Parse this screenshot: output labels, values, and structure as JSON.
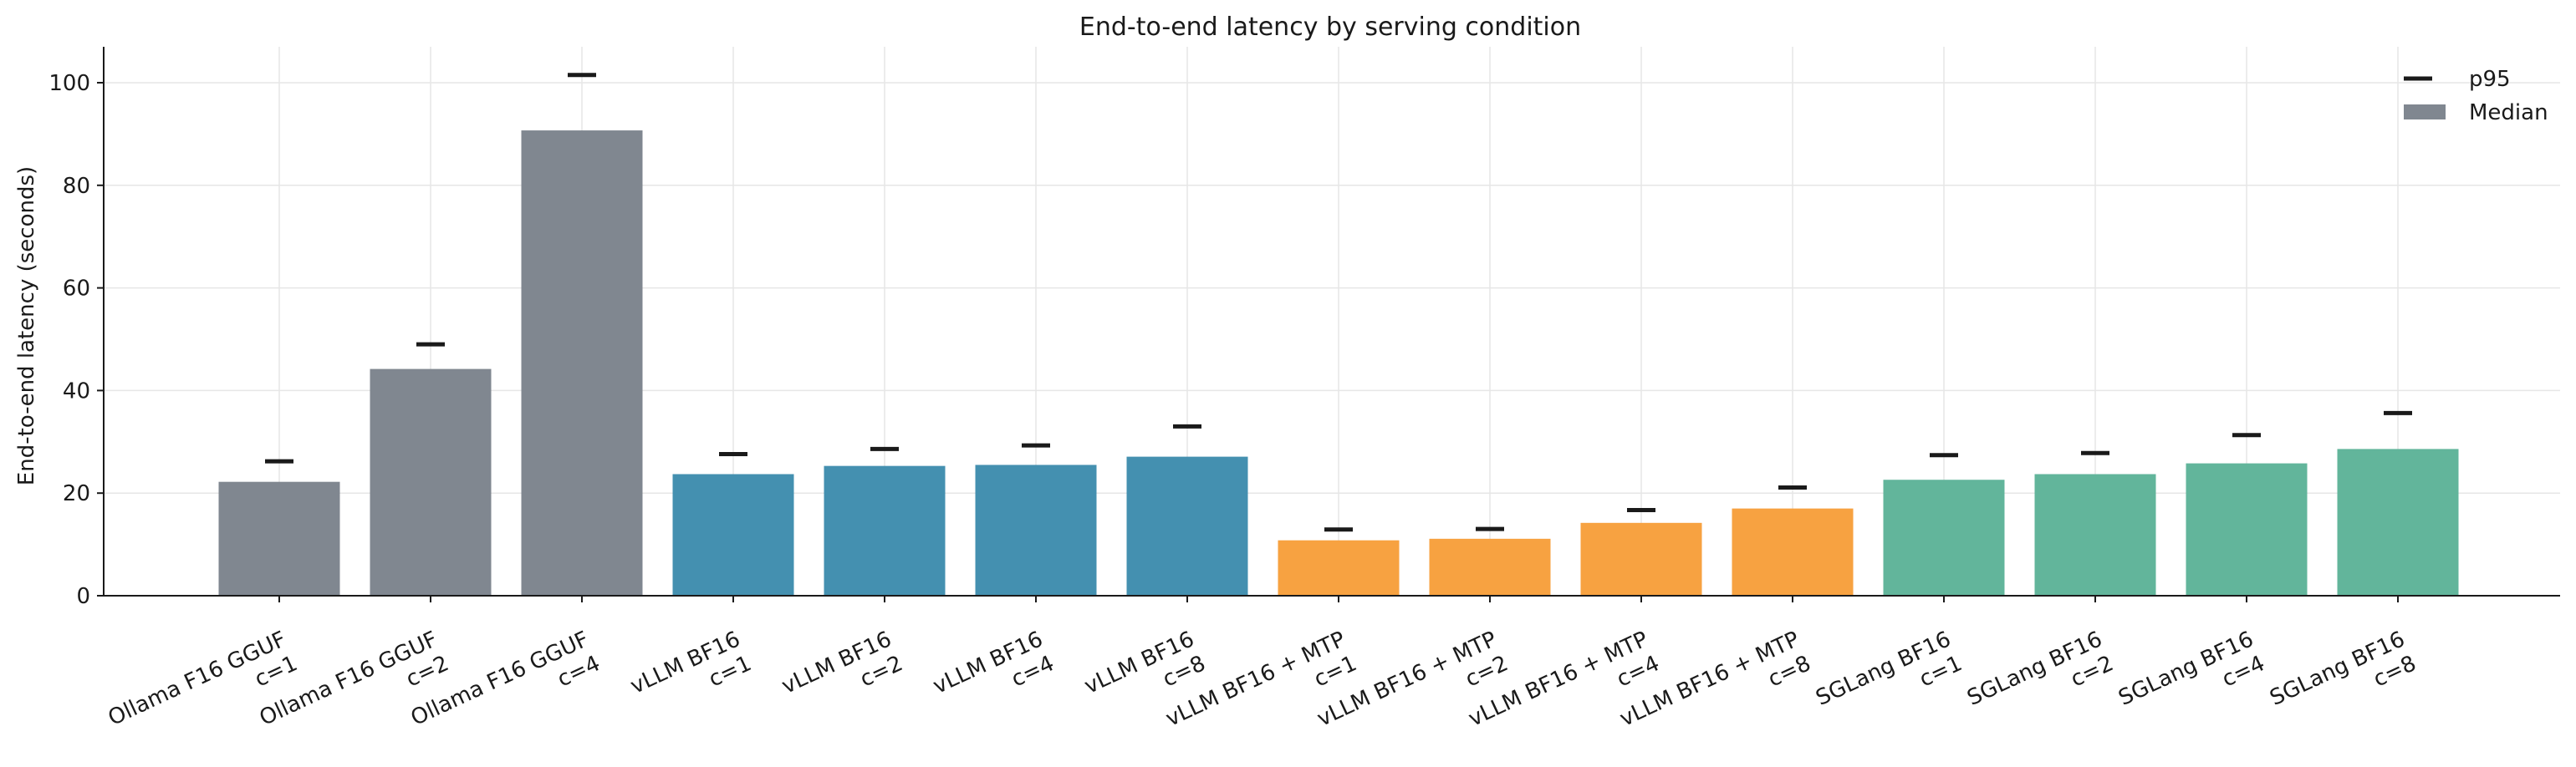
{
  "chart_data": {
    "type": "bar",
    "title": "End-to-end latency by serving condition",
    "xlabel": "",
    "ylabel": "End-to-end latency (seconds)",
    "ylim": [
      0,
      107
    ],
    "yticks": [
      0,
      20,
      40,
      60,
      80,
      100
    ],
    "grid": true,
    "legend_position": "top-right",
    "categories": [
      [
        "Ollama F16 GGUF",
        "c=1"
      ],
      [
        "Ollama F16 GGUF",
        "c=2"
      ],
      [
        "Ollama F16 GGUF",
        "c=4"
      ],
      [
        "vLLM BF16",
        "c=1"
      ],
      [
        "vLLM BF16",
        "c=2"
      ],
      [
        "vLLM BF16",
        "c=4"
      ],
      [
        "vLLM BF16",
        "c=8"
      ],
      [
        "vLLM BF16 + MTP",
        "c=1"
      ],
      [
        "vLLM BF16 + MTP",
        "c=2"
      ],
      [
        "vLLM BF16 + MTP",
        "c=4"
      ],
      [
        "vLLM BF16 + MTP",
        "c=8"
      ],
      [
        "SGLang BF16",
        "c=1"
      ],
      [
        "SGLang BF16",
        "c=2"
      ],
      [
        "SGLang BF16",
        "c=4"
      ],
      [
        "SGLang BF16",
        "c=8"
      ]
    ],
    "series": [
      {
        "name": "Median",
        "values": [
          22.2,
          44.2,
          90.7,
          23.7,
          25.3,
          25.5,
          27.1,
          10.8,
          11.1,
          14.2,
          17.0,
          22.6,
          23.7,
          25.8,
          28.6
        ]
      },
      {
        "name": "p95",
        "values": [
          26.2,
          49.0,
          101.5,
          27.6,
          28.6,
          29.3,
          33.0,
          12.9,
          13.0,
          16.7,
          21.1,
          27.4,
          27.8,
          31.3,
          35.6
        ]
      }
    ],
    "bar_colors": [
      "#808790",
      "#808790",
      "#808790",
      "#4490b0",
      "#4490b0",
      "#4490b0",
      "#4490b0",
      "#f7a241",
      "#f7a241",
      "#f7a241",
      "#f7a241",
      "#62b59b",
      "#62b59b",
      "#62b59b",
      "#62b59b"
    ],
    "legend": [
      {
        "label": "p95",
        "marker": "line",
        "color": "#1a1a1a"
      },
      {
        "label": "Median",
        "marker": "patch",
        "color": "#808790"
      }
    ]
  }
}
